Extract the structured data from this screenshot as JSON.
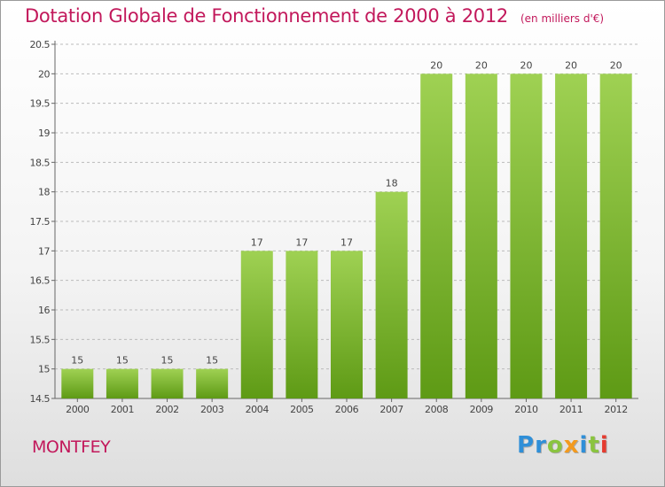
{
  "title": {
    "main": "Dotation Globale de Fonctionnement de 2000 à 2012",
    "unit": "(en milliers d'€)"
  },
  "city": "MONTFEY",
  "logo": {
    "letters": [
      "P",
      "r",
      "o",
      "x",
      "i",
      "t",
      "i"
    ]
  },
  "colors": {
    "accent": "#c2185b",
    "bar_top": "#9fd153",
    "bar_bottom": "#5e9a15",
    "grid": "#bbbbbb"
  },
  "chart_data": {
    "type": "bar",
    "title": "Dotation Globale de Fonctionnement de 2000 à 2012",
    "xlabel": "",
    "ylabel": "",
    "categories": [
      "2000",
      "2001",
      "2002",
      "2003",
      "2004",
      "2005",
      "2006",
      "2007",
      "2008",
      "2009",
      "2010",
      "2011",
      "2012"
    ],
    "values": [
      15,
      15,
      15,
      15,
      17,
      17,
      17,
      18,
      20,
      20,
      20,
      20,
      20
    ],
    "value_labels": [
      "15",
      "15",
      "15",
      "15",
      "17",
      "17",
      "17",
      "18",
      "20",
      "20",
      "20",
      "20",
      "20"
    ],
    "ylim": [
      14.5,
      20.5
    ],
    "yticks": [
      14.5,
      15,
      15.5,
      16,
      16.5,
      17,
      17.5,
      18,
      18.5,
      19,
      19.5,
      20,
      20.5
    ],
    "ytick_labels": [
      "14.5",
      "15",
      "15.5",
      "16",
      "16.5",
      "17",
      "17.5",
      "18",
      "18.5",
      "19",
      "19.5",
      "20",
      "20.5"
    ],
    "grid": true
  }
}
